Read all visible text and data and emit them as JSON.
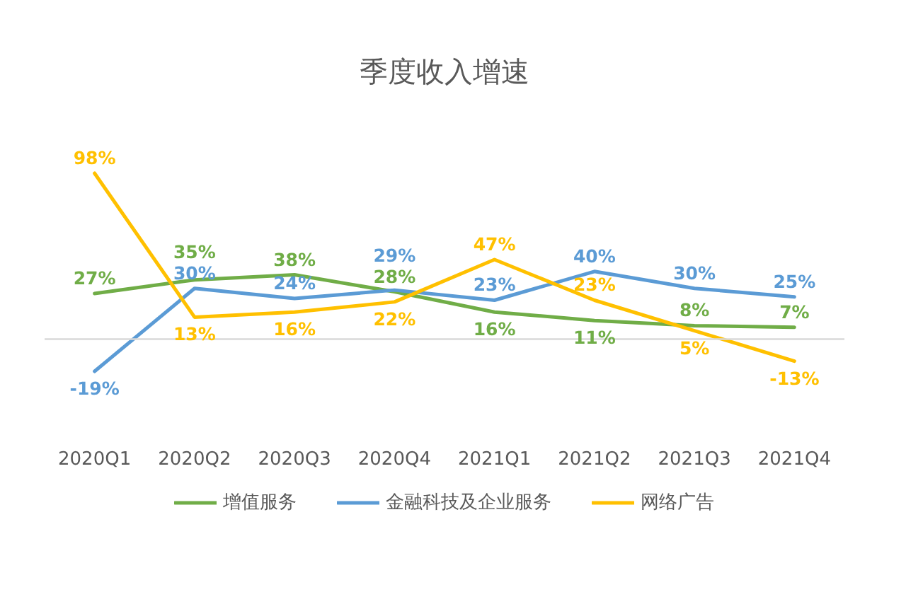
{
  "chart_data": {
    "type": "line",
    "title": "季度收入增速",
    "categories": [
      "2020Q1",
      "2020Q2",
      "2020Q3",
      "2020Q4",
      "2021Q1",
      "2021Q2",
      "2021Q3",
      "2021Q4"
    ],
    "series": [
      {
        "name": "增值服务",
        "color": "#70ad47",
        "values": [
          27,
          35,
          38,
          28,
          16,
          11,
          8,
          7
        ],
        "value_labels": [
          "27%",
          "35%",
          "38%",
          "28%",
          "16%",
          "11%",
          "8%",
          "7%"
        ]
      },
      {
        "name": "金融科技及企业服务",
        "color": "#5b9bd5",
        "values": [
          -19,
          30,
          24,
          29,
          23,
          40,
          30,
          25
        ],
        "value_labels": [
          "-19%",
          "30%",
          "24%",
          "29%",
          "23%",
          "40%",
          "30%",
          "25%"
        ]
      },
      {
        "name": "网络广告",
        "color": "#ffc000",
        "values": [
          98,
          13,
          16,
          22,
          47,
          23,
          5,
          -13
        ],
        "value_labels": [
          "98%",
          "13%",
          "16%",
          "22%",
          "47%",
          "23%",
          "5%",
          "-13%"
        ]
      }
    ],
    "tick_labels": "x",
    "legend": "bottom"
  }
}
